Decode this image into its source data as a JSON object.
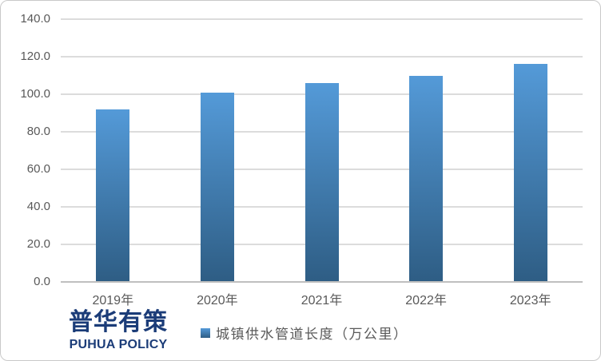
{
  "chart_data": {
    "type": "bar",
    "title": "",
    "categories": [
      "2019年",
      "2020年",
      "2021年",
      "2022年",
      "2023年"
    ],
    "values": [
      92,
      101,
      106,
      110,
      116
    ],
    "series_name": "城镇供水管道长度（万公里）",
    "ylim": [
      0,
      140
    ],
    "ytick_step": 20,
    "ytick_labels": [
      "140.0",
      "120.0",
      "100.0",
      "80.0",
      "60.0",
      "40.0",
      "20.0",
      "0.0"
    ],
    "grid": true,
    "legend_position": "bottom"
  },
  "legend": {
    "label": "城镇供水管道长度（万公里）"
  },
  "branding": {
    "logo_cn": "普华有策",
    "logo_en": "PUHUA POLICY"
  },
  "colors": {
    "bar_top": "#549ad8",
    "bar_bottom": "#2e5d84",
    "gridline": "#dcdcdc",
    "axis_line": "#bfbfbf",
    "text": "#595959",
    "logo": "#1b3c78"
  }
}
